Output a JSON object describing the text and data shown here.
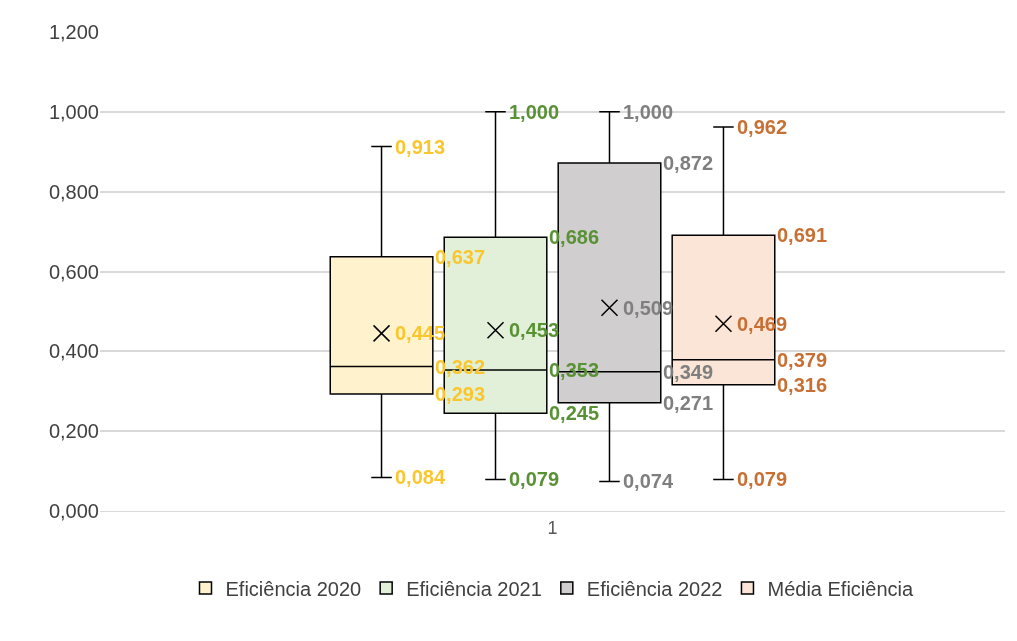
{
  "chart_data": {
    "type": "box",
    "categories": [
      "1"
    ],
    "series": [
      {
        "name": "Eficiência 2020",
        "color": "#fff2cc",
        "boxes": [
          {
            "low": 0.084,
            "q1": 0.293,
            "median": 0.362,
            "q3": 0.637,
            "high": 0.913,
            "mean": 0.445
          }
        ]
      },
      {
        "name": "Eficiência 2021",
        "color": "#e2f0d9",
        "boxes": [
          {
            "low": 0.079,
            "q1": 0.245,
            "median": 0.353,
            "q3": 0.686,
            "high": 1.0,
            "mean": 0.453
          }
        ]
      },
      {
        "name": "Eficiência 2022",
        "color": "#d0cece",
        "boxes": [
          {
            "low": 0.074,
            "q1": 0.271,
            "median": 0.349,
            "q3": 0.872,
            "high": 1.0,
            "mean": 0.509
          }
        ]
      },
      {
        "name": "Média Eficiência",
        "color": "#fbe5d6",
        "boxes": [
          {
            "low": 0.079,
            "q1": 0.316,
            "median": 0.379,
            "q3": 0.691,
            "high": 0.962,
            "mean": 0.469
          }
        ]
      }
    ],
    "annotations": [
      "0,913",
      "0,637",
      "0,445",
      "0,362",
      "0,293",
      "0,084",
      "1,000",
      "0,686",
      "0,453",
      "0,353",
      "0,245",
      "0,079",
      "1,000",
      "0,872",
      "0,509",
      "0,349",
      "0,271",
      "0,074",
      "0,962",
      "0,691",
      "0,469",
      "0,379",
      "0,316",
      "0,079"
    ],
    "ylim": [
      0,
      1.2
    ],
    "yticks": [
      {
        "value": 0,
        "label": "0,000"
      },
      {
        "value": 0.2,
        "label": "0,200"
      },
      {
        "value": 0.4,
        "label": "0,400"
      },
      {
        "value": 0.6,
        "label": "0,600"
      },
      {
        "value": 0.8,
        "label": "0,800"
      },
      {
        "value": 1.0,
        "label": "1,000"
      },
      {
        "value": 1.2,
        "label": "1,200"
      }
    ],
    "grid": "y",
    "legend": "bottom",
    "marker": "cross"
  }
}
